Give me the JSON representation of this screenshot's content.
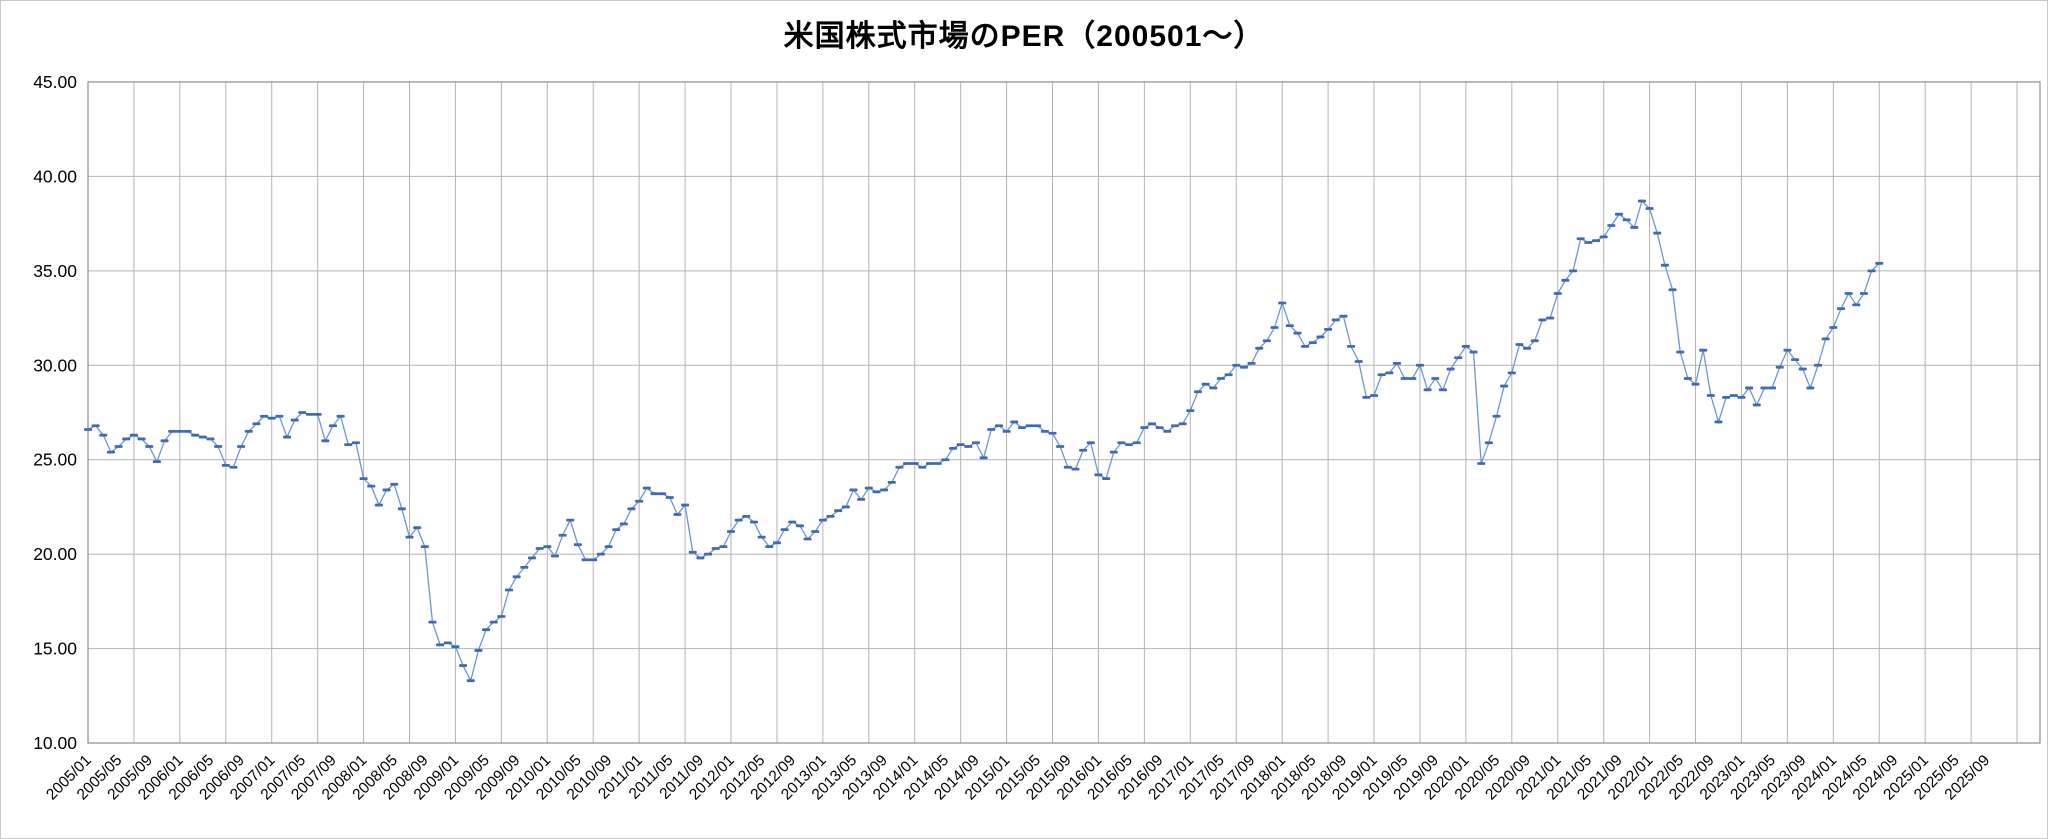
{
  "title": "米国株式市場のPER（200501～）",
  "chart_data": {
    "type": "line",
    "title": "米国株式市場のPER（200501～）",
    "series_name": "PER",
    "x_start": "2005/01",
    "frequency": "monthly",
    "xlabel": "",
    "ylabel": "",
    "ylim": [
      10,
      45
    ],
    "y_major_unit": 5,
    "grid": true,
    "legend": "none",
    "axis_total_months": 255,
    "gridline_interval_months": 6,
    "label_interval_months": 4,
    "y_tick_labels": [
      "45.00",
      "40.00",
      "35.00",
      "30.00",
      "25.00",
      "20.00",
      "15.00",
      "10.00"
    ],
    "x_tick_labels": [
      "2005/01",
      "2005/05",
      "2005/09",
      "2006/01",
      "2006/05",
      "2006/09",
      "2007/01",
      "2007/05",
      "2007/09",
      "2008/01",
      "2008/05",
      "2008/09",
      "2009/01",
      "2009/05",
      "2009/09",
      "2010/01",
      "2010/05",
      "2010/09",
      "2011/01",
      "2011/05",
      "2011/09",
      "2012/01",
      "2012/05",
      "2012/09",
      "2013/01",
      "2013/05",
      "2013/09",
      "2014/01",
      "2014/05",
      "2014/09",
      "2015/01",
      "2015/05",
      "2015/09",
      "2016/01",
      "2016/05",
      "2016/09",
      "2017/01",
      "2017/05",
      "2017/09",
      "2018/01",
      "2018/05",
      "2018/09",
      "2019/01",
      "2019/05",
      "2019/09",
      "2020/01",
      "2020/05",
      "2020/09",
      "2021/01",
      "2021/05",
      "2021/09",
      "2022/01",
      "2022/05",
      "2022/09",
      "2023/01",
      "2023/05",
      "2023/09",
      "2024/01",
      "2024/05",
      "2024/09",
      "2025/01",
      "2025/05",
      "2025/09"
    ],
    "values": [
      26.6,
      26.8,
      26.3,
      25.4,
      25.7,
      26.1,
      26.3,
      26.1,
      25.7,
      24.9,
      26.0,
      26.5,
      26.5,
      26.5,
      26.3,
      26.2,
      26.1,
      25.7,
      24.7,
      24.6,
      25.7,
      26.5,
      26.9,
      27.3,
      27.2,
      27.3,
      26.2,
      27.1,
      27.5,
      27.4,
      27.4,
      26.0,
      26.8,
      27.3,
      25.8,
      25.9,
      24.0,
      23.6,
      22.6,
      23.4,
      23.7,
      22.4,
      20.9,
      21.4,
      20.4,
      16.4,
      15.2,
      15.3,
      15.1,
      14.1,
      13.3,
      14.9,
      16.0,
      16.4,
      16.7,
      18.1,
      18.8,
      19.3,
      19.8,
      20.3,
      20.4,
      19.9,
      21.0,
      21.8,
      20.5,
      19.7,
      19.7,
      20.0,
      20.4,
      21.3,
      21.6,
      22.4,
      22.8,
      23.5,
      23.2,
      23.2,
      23.0,
      22.1,
      22.6,
      20.1,
      19.8,
      20.0,
      20.3,
      20.4,
      21.2,
      21.8,
      22.0,
      21.7,
      20.9,
      20.4,
      20.6,
      21.3,
      21.7,
      21.5,
      20.8,
      21.2,
      21.8,
      22.0,
      22.3,
      22.5,
      23.4,
      22.9,
      23.5,
      23.3,
      23.4,
      23.8,
      24.6,
      24.8,
      24.8,
      24.6,
      24.8,
      24.8,
      25.0,
      25.6,
      25.8,
      25.7,
      25.9,
      25.1,
      26.6,
      26.8,
      26.5,
      27.0,
      26.7,
      26.8,
      26.8,
      26.5,
      26.4,
      25.7,
      24.6,
      24.5,
      25.5,
      25.9,
      24.2,
      24.0,
      25.4,
      25.9,
      25.8,
      25.9,
      26.7,
      26.9,
      26.7,
      26.5,
      26.8,
      26.9,
      27.6,
      28.6,
      29.0,
      28.8,
      29.3,
      29.5,
      30.0,
      29.9,
      30.1,
      30.9,
      31.3,
      32.0,
      33.3,
      32.1,
      31.7,
      31.0,
      31.2,
      31.5,
      31.9,
      32.4,
      32.6,
      31.0,
      30.2,
      28.3,
      28.4,
      29.5,
      29.6,
      30.1,
      29.3,
      29.3,
      30.0,
      28.7,
      29.3,
      28.7,
      29.8,
      30.4,
      31.0,
      30.7,
      24.8,
      25.9,
      27.3,
      28.9,
      29.6,
      31.1,
      30.9,
      31.3,
      32.4,
      32.5,
      33.8,
      34.5,
      35.0,
      36.7,
      36.5,
      36.6,
      36.8,
      37.4,
      38.0,
      37.7,
      37.3,
      38.7,
      38.3,
      37.0,
      35.3,
      34.0,
      30.7,
      29.3,
      29.0,
      30.8,
      28.4,
      27.0,
      28.3,
      28.4,
      28.3,
      28.8,
      27.9,
      28.8,
      28.8,
      29.9,
      30.8,
      30.3,
      29.8,
      28.8,
      30.0,
      31.4,
      32.0,
      33.0,
      33.8,
      33.2,
      33.8,
      35.0,
      35.4
    ],
    "colors": {
      "marker": "#3e6cb3",
      "line": "#6b97d4",
      "gridline": "#b4b4b4",
      "plot_border": "#8c8c8c",
      "text": "#000000",
      "background": "#ffffff"
    }
  }
}
